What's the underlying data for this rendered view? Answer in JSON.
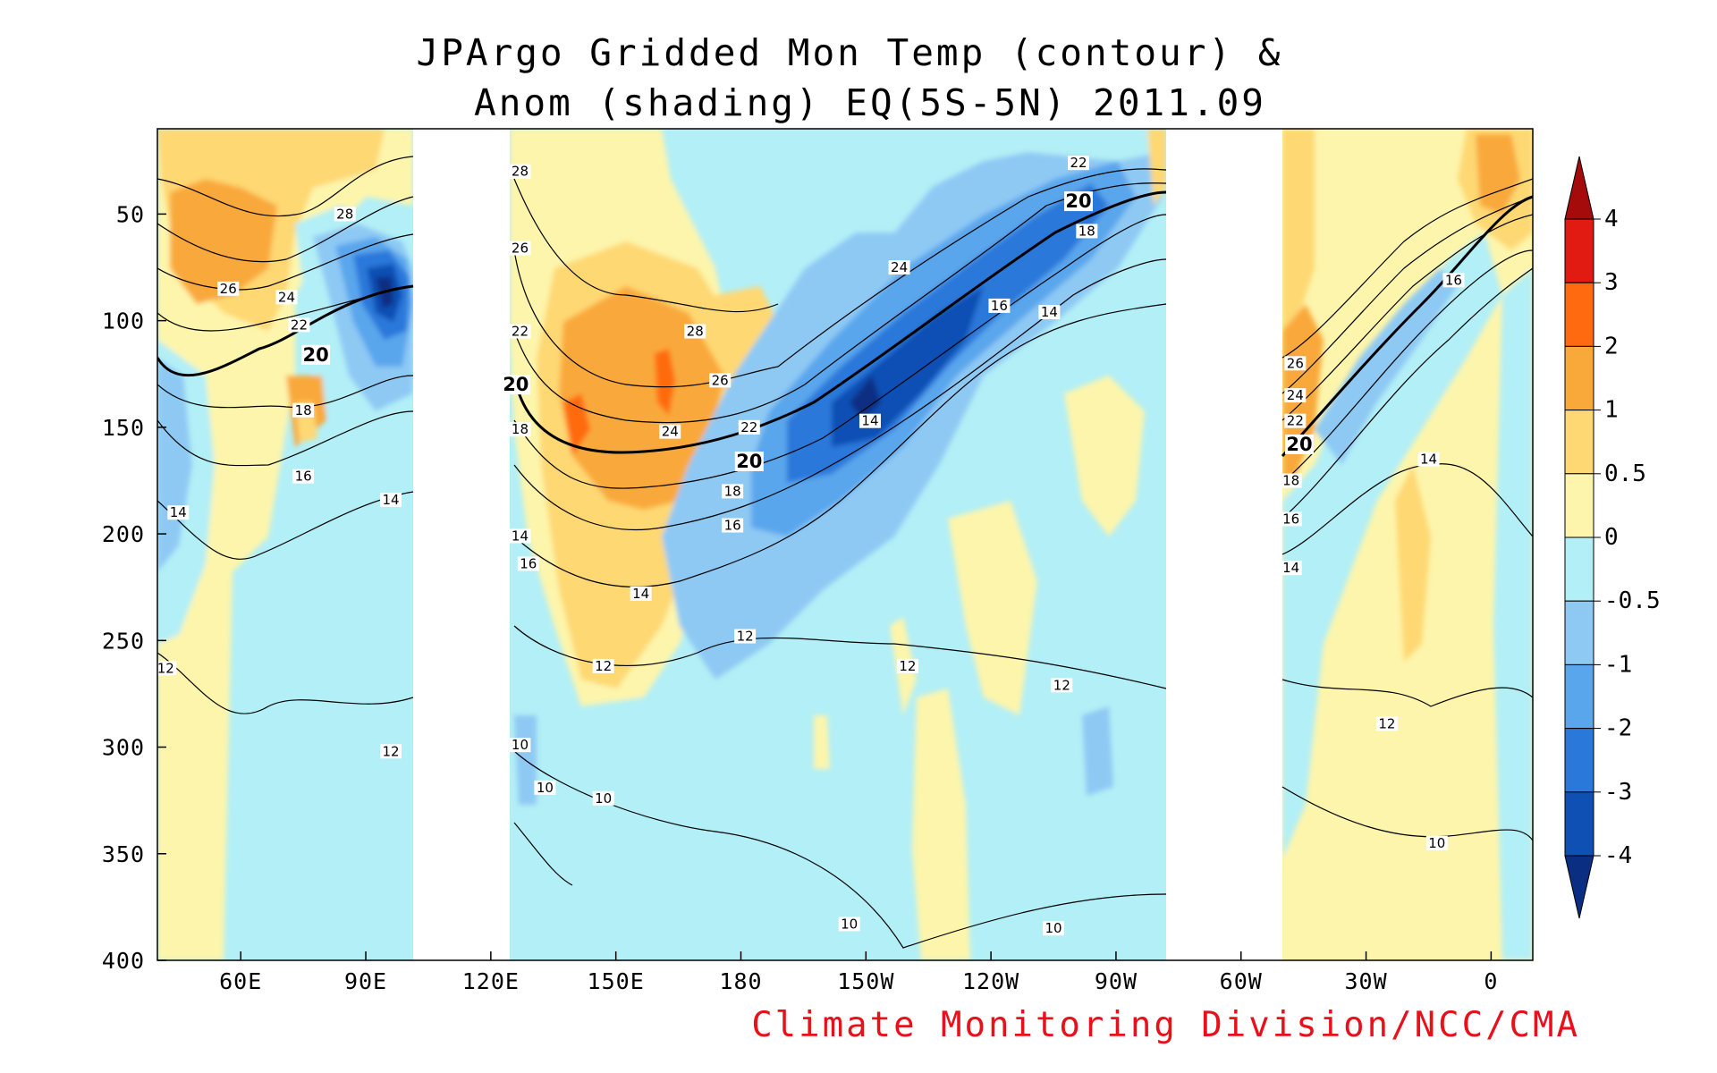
{
  "title_line1": "JPArgo Gridded Mon Temp (contour) &",
  "title_line2": "Anom (shading) EQ(5S-5N) 2011.09",
  "credit": "Climate Monitoring Division/NCC/CMA",
  "chart_data": {
    "type": "heatmap",
    "description_fields": {
      "xlabel": "",
      "ylabel": ""
    },
    "x_ticks": [
      "60E",
      "90E",
      "120E",
      "150E",
      "180",
      "150W",
      "120W",
      "90W",
      "60W",
      "30W",
      "0"
    ],
    "x_tick_lon": [
      60,
      90,
      120,
      150,
      180,
      210,
      240,
      270,
      300,
      330,
      360
    ],
    "x_range_lon": [
      40,
      370
    ],
    "y_ticks": [
      "50",
      "100",
      "150",
      "200",
      "250",
      "300",
      "350",
      "400"
    ],
    "y_tick_depth": [
      50,
      100,
      150,
      200,
      250,
      300,
      350,
      400
    ],
    "y_range_depth": [
      10,
      400
    ],
    "y_inverted": true,
    "land_gaps_lon": [
      [
        102,
        125
      ],
      [
        280,
        308
      ]
    ],
    "colorbar": {
      "labels": [
        "4",
        "3",
        "2",
        "1",
        "0.5",
        "0",
        "-0.5",
        "-1",
        "-2",
        "-3",
        "-4"
      ],
      "levels": [
        4,
        3,
        2,
        1,
        0.5,
        0,
        -0.5,
        -1,
        -2,
        -3,
        -4
      ],
      "colors": [
        "#a50b0b",
        "#e11a12",
        "#ff6a10",
        "#f9a93a",
        "#fed873",
        "#fdf5ac",
        "#b3eff6",
        "#8ec9f4",
        "#5aa6ec",
        "#2a78da",
        "#0f50b4",
        "#0a2e82"
      ]
    },
    "contour_labels": [
      {
        "value": "28",
        "lon": 85,
        "depth": 50
      },
      {
        "value": "26",
        "lon": 57,
        "depth": 85
      },
      {
        "value": "24",
        "lon": 71,
        "depth": 89
      },
      {
        "value": "22",
        "lon": 74,
        "depth": 102
      },
      {
        "value": "20",
        "lon": 78,
        "depth": 116,
        "bold": true
      },
      {
        "value": "18",
        "lon": 75,
        "depth": 142
      },
      {
        "value": "16",
        "lon": 75,
        "depth": 173
      },
      {
        "value": "14",
        "lon": 45,
        "depth": 190
      },
      {
        "value": "14",
        "lon": 96,
        "depth": 184
      },
      {
        "value": "12",
        "lon": 42,
        "depth": 263
      },
      {
        "value": "12",
        "lon": 96,
        "depth": 302
      },
      {
        "value": "28",
        "lon": 127,
        "depth": 30
      },
      {
        "value": "26",
        "lon": 127,
        "depth": 66
      },
      {
        "value": "22",
        "lon": 127,
        "depth": 105
      },
      {
        "value": "20",
        "lon": 126,
        "depth": 130,
        "bold": true
      },
      {
        "value": "18",
        "lon": 127,
        "depth": 151
      },
      {
        "value": "14",
        "lon": 127,
        "depth": 201
      },
      {
        "value": "16",
        "lon": 129,
        "depth": 214
      },
      {
        "value": "10",
        "lon": 127,
        "depth": 299
      },
      {
        "value": "10",
        "lon": 133,
        "depth": 319
      },
      {
        "value": "10",
        "lon": 147,
        "depth": 324
      },
      {
        "value": "12",
        "lon": 147,
        "depth": 262
      },
      {
        "value": "14",
        "lon": 156,
        "depth": 228
      },
      {
        "value": "28",
        "lon": 169,
        "depth": 105
      },
      {
        "value": "26",
        "lon": 175,
        "depth": 128
      },
      {
        "value": "24",
        "lon": 163,
        "depth": 152
      },
      {
        "value": "22",
        "lon": 182,
        "depth": 150
      },
      {
        "value": "20",
        "lon": 182,
        "depth": 166,
        "bold": true
      },
      {
        "value": "18",
        "lon": 178,
        "depth": 180
      },
      {
        "value": "16",
        "lon": 178,
        "depth": 196
      },
      {
        "value": "12",
        "lon": 181,
        "depth": 248
      },
      {
        "value": "22",
        "lon": 261,
        "depth": 26
      },
      {
        "value": "20",
        "lon": 261,
        "depth": 44,
        "bold": true
      },
      {
        "value": "18",
        "lon": 263,
        "depth": 58
      },
      {
        "value": "24",
        "lon": 218,
        "depth": 75
      },
      {
        "value": "16",
        "lon": 242,
        "depth": 93
      },
      {
        "value": "14",
        "lon": 254,
        "depth": 96
      },
      {
        "value": "14",
        "lon": 211,
        "depth": 147
      },
      {
        "value": "12",
        "lon": 220,
        "depth": 262
      },
      {
        "value": "12",
        "lon": 257,
        "depth": 271
      },
      {
        "value": "10",
        "lon": 206,
        "depth": 383
      },
      {
        "value": "10",
        "lon": 255,
        "depth": 385
      },
      {
        "value": "16",
        "lon": 351,
        "depth": 81
      },
      {
        "value": "26",
        "lon": 313,
        "depth": 120
      },
      {
        "value": "24",
        "lon": 313,
        "depth": 135
      },
      {
        "value": "22",
        "lon": 313,
        "depth": 147
      },
      {
        "value": "20",
        "lon": 314,
        "depth": 158,
        "bold": true
      },
      {
        "value": "18",
        "lon": 312,
        "depth": 175
      },
      {
        "value": "16",
        "lon": 312,
        "depth": 193
      },
      {
        "value": "14",
        "lon": 312,
        "depth": 216
      },
      {
        "value": "14",
        "lon": 345,
        "depth": 165
      },
      {
        "value": "12",
        "lon": 335,
        "depth": 289
      },
      {
        "value": "10",
        "lon": 347,
        "depth": 345
      }
    ]
  }
}
